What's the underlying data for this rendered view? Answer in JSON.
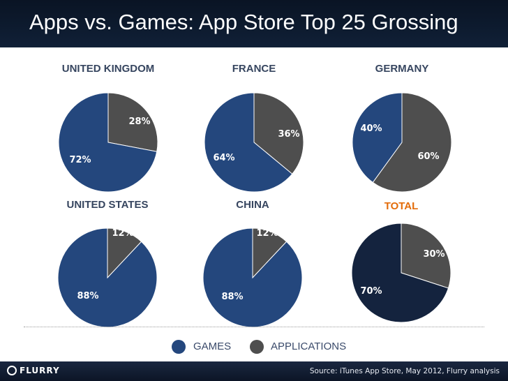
{
  "title": "Apps vs. Games: App Store Top 25 Grossing",
  "colors": {
    "games": "#24477d",
    "applications": "#4e4e4e",
    "total_games": "#14233e",
    "total_label": "#e36c0a",
    "label": "#36455f"
  },
  "chart_data": [
    {
      "type": "pie",
      "title": "UNITED KINGDOM",
      "slices": [
        {
          "label": "GAMES",
          "value": 72,
          "text": "72%"
        },
        {
          "label": "APPLICATIONS",
          "value": 28,
          "text": "28%"
        }
      ]
    },
    {
      "type": "pie",
      "title": "FRANCE",
      "slices": [
        {
          "label": "GAMES",
          "value": 64,
          "text": "64%"
        },
        {
          "label": "APPLICATIONS",
          "value": 36,
          "text": "36%"
        }
      ]
    },
    {
      "type": "pie",
      "title": "GERMANY",
      "slices": [
        {
          "label": "GAMES",
          "value": 40,
          "text": "40%"
        },
        {
          "label": "APPLICATIONS",
          "value": 60,
          "text": "60%"
        }
      ]
    },
    {
      "type": "pie",
      "title": "UNITED STATES",
      "slices": [
        {
          "label": "GAMES",
          "value": 88,
          "text": "88%"
        },
        {
          "label": "APPLICATIONS",
          "value": 12,
          "text": "12%"
        }
      ]
    },
    {
      "type": "pie",
      "title": "CHINA",
      "slices": [
        {
          "label": "GAMES",
          "value": 88,
          "text": "88%"
        },
        {
          "label": "APPLICATIONS",
          "value": 12,
          "text": "12%"
        }
      ]
    },
    {
      "type": "pie",
      "title": "TOTAL",
      "highlight": true,
      "slices": [
        {
          "label": "GAMES",
          "value": 70,
          "text": "70%"
        },
        {
          "label": "APPLICATIONS",
          "value": 30,
          "text": "30%"
        }
      ]
    }
  ],
  "legend": [
    {
      "label": "GAMES"
    },
    {
      "label": "APPLICATIONS"
    }
  ],
  "footer": {
    "logo": "FLURRY",
    "source": "Source: iTunes App Store, May 2012, Flurry analysis"
  }
}
